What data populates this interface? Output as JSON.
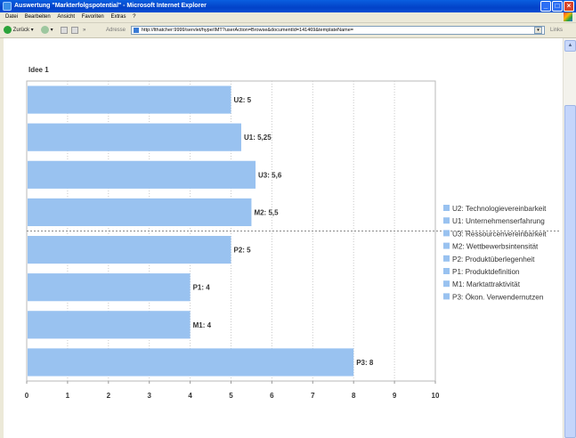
{
  "window": {
    "title": "Auswertung \"Markterfolgspotential\" - Microsoft Internet Explorer"
  },
  "menu": [
    "Datei",
    "Bearbeiten",
    "Ansicht",
    "Favoriten",
    "Extras",
    "?"
  ],
  "toolbar": {
    "back_label": "Zurück",
    "address_label": "Adresse",
    "address_value": "http://lthatcher:9999/servlet/hype/IMT?userAction=Browse&documentId=141469&templateName=",
    "links_label": "Links"
  },
  "page": {
    "chart_heading": "Idee 1"
  },
  "chart_data": {
    "type": "bar",
    "orientation": "horizontal",
    "categories": [
      "U2",
      "U1",
      "U3",
      "M2",
      "P2",
      "P1",
      "M1",
      "P3"
    ],
    "values": [
      5,
      5.25,
      5.6,
      5.5,
      5,
      4,
      4,
      8
    ],
    "bar_labels": [
      "U2: 5",
      "U1: 5,25",
      "U3: 5,6",
      "M2: 5,5",
      "P2: 5",
      "P1: 4",
      "M1: 4",
      "P3: 8"
    ],
    "xlim": [
      0,
      10
    ],
    "xticks": [
      "0",
      "1",
      "2",
      "3",
      "4",
      "5",
      "6",
      "7",
      "8",
      "9",
      "10"
    ],
    "bar_color": "#99c2f0",
    "grid": "vertical dotted",
    "separator_after_index": 3,
    "legend": {
      "placement": "right",
      "entries": [
        "U2: Technologievereinbarkeit",
        "U1: Unternehmenserfahrung",
        "U3: Ressourcenvereinbarkeit",
        "M2: Wettbewerbsintensität",
        "P2: Produktüberlegenheit",
        "P1: Produktdefinition",
        "M1: Marktattraktivität",
        "P3: Ökon. Verwendernutzen"
      ]
    }
  }
}
